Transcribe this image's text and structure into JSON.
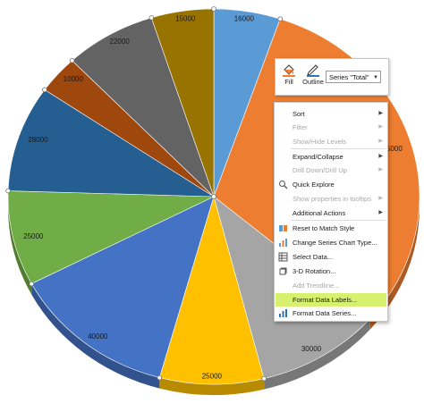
{
  "chart_data": {
    "type": "pie",
    "values": [
      16000,
      95000,
      30000,
      25000,
      40000,
      25000,
      28000,
      10000,
      22000,
      15000
    ],
    "labels": [
      "16000",
      "95000",
      "30000",
      "25000",
      "40000",
      "25000",
      "28000",
      "10000",
      "22000",
      "15000"
    ],
    "colors": [
      "#5b9bd5",
      "#ed7d31",
      "#a5a5a5",
      "#ffc000",
      "#4472c4",
      "#70ad47",
      "#255e91",
      "#9e480e",
      "#636363",
      "#997300"
    ],
    "start_angle_deg": 0,
    "direction": "clockwise",
    "selected": true
  },
  "mini_toolbar": {
    "fill_label": "Fill",
    "outline_label": "Outline",
    "series_selector": "Series \"Total\"",
    "fill_icon": "paint-bucket-icon",
    "outline_icon": "pen-outline-icon"
  },
  "context_menu": {
    "items": [
      {
        "label": "Sort",
        "enabled": true,
        "submenu": true,
        "icon": ""
      },
      {
        "label": "Filter",
        "enabled": false,
        "submenu": true,
        "icon": ""
      },
      {
        "label": "Show/Hide Levels",
        "enabled": false,
        "submenu": true,
        "icon": ""
      },
      {
        "label": "Expand/Collapse",
        "enabled": true,
        "submenu": true,
        "icon": ""
      },
      {
        "label": "Drill Down/Drill Up",
        "enabled": false,
        "submenu": true,
        "icon": ""
      },
      {
        "label": "Quick Explore",
        "enabled": true,
        "submenu": false,
        "icon": "magnifier-icon"
      },
      {
        "label": "Show properties in tooltips",
        "enabled": false,
        "submenu": true,
        "icon": ""
      },
      {
        "label": "Additional Actions",
        "enabled": true,
        "submenu": true,
        "icon": ""
      },
      {
        "label": "Reset to Match Style",
        "enabled": true,
        "submenu": false,
        "icon": "reset-style-icon"
      },
      {
        "label": "Change Series Chart Type...",
        "enabled": true,
        "submenu": false,
        "icon": "chart-type-icon"
      },
      {
        "label": "Select Data...",
        "enabled": true,
        "submenu": false,
        "icon": "select-data-icon"
      },
      {
        "label": "3-D Rotation...",
        "enabled": true,
        "submenu": false,
        "icon": "rotation-icon"
      },
      {
        "label": "Add Trendline...",
        "enabled": false,
        "submenu": false,
        "icon": ""
      },
      {
        "label": "Format Data Labels...",
        "enabled": true,
        "submenu": false,
        "icon": "",
        "highlighted": true
      },
      {
        "label": "Format Data Series...",
        "enabled": true,
        "submenu": false,
        "icon": "format-series-icon"
      }
    ],
    "highlight_color": "#d7f16f"
  }
}
